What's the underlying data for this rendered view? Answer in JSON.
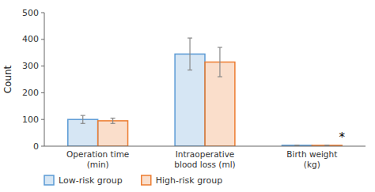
{
  "chart_data": {
    "type": "bar",
    "y_label": "Count",
    "categories": [
      "Operation time\n(min)",
      "Intraoperative\nblood loss (ml)",
      "Birth weight\n(kg)"
    ],
    "series": [
      {
        "name": "Low-risk group",
        "color": "#5b9bd5",
        "values": [
          100,
          345,
          3.2
        ],
        "errors": [
          15,
          60,
          0.3
        ]
      },
      {
        "name": "High-risk group",
        "color": "#ed7d31",
        "values": [
          95,
          315,
          3.1
        ],
        "errors": [
          10,
          55,
          0.25
        ]
      }
    ],
    "annotations": [
      {
        "text": "*",
        "category": 2
      }
    ],
    "ylim": [
      0,
      500
    ],
    "yticks": [
      0,
      100,
      200,
      300,
      400,
      500
    ],
    "grid": false,
    "legend": "bottom"
  }
}
